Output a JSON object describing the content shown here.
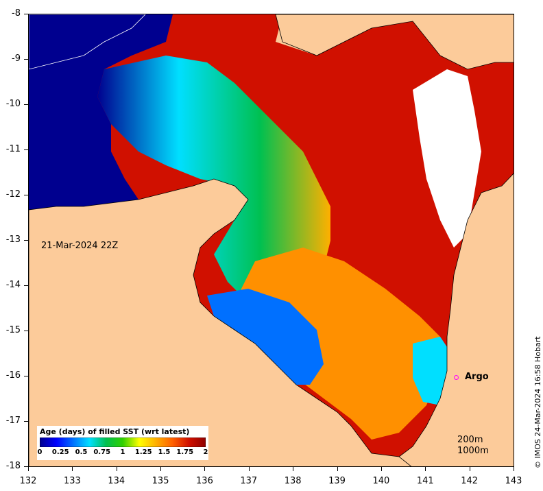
{
  "map": {
    "x_axis_ticks": [
      "132",
      "133",
      "134",
      "135",
      "136",
      "137",
      "138",
      "139",
      "140",
      "141",
      "142",
      "143"
    ],
    "y_axis_ticks": [
      "-8",
      "-9",
      "-10",
      "-11",
      "-12",
      "-13",
      "-14",
      "-15",
      "-16",
      "-17",
      "-18"
    ],
    "lon_range": [
      132,
      143
    ],
    "lat_range": [
      -18,
      -8
    ],
    "land_color": "#fccb9a",
    "ocean_no_data_color": "#ffffff",
    "coastline_color": "#000000"
  },
  "annotations": {
    "date_stamp": "21-Mar-2024 22Z",
    "argo_label": "Argo",
    "argo_color": "#ff00ff",
    "contour_200": "200m",
    "contour_1000": "1000m",
    "credit": "© IMOS 24-Mar-2024 16:58 Hobart"
  },
  "colorbar": {
    "title": "Age (days) of filled SST (wrt latest)",
    "ticks": [
      "0",
      "0.25",
      "0.5",
      "0.75",
      "1",
      "1.25",
      "1.5",
      "1.75",
      "2"
    ],
    "range": [
      0,
      2
    ],
    "colormap": "jet",
    "colors": [
      "#00008f",
      "#0000ff",
      "#0070ff",
      "#00dfff",
      "#00c050",
      "#30d000",
      "#ffff00",
      "#ffb000",
      "#ff6000",
      "#d01000",
      "#8f0000"
    ]
  }
}
